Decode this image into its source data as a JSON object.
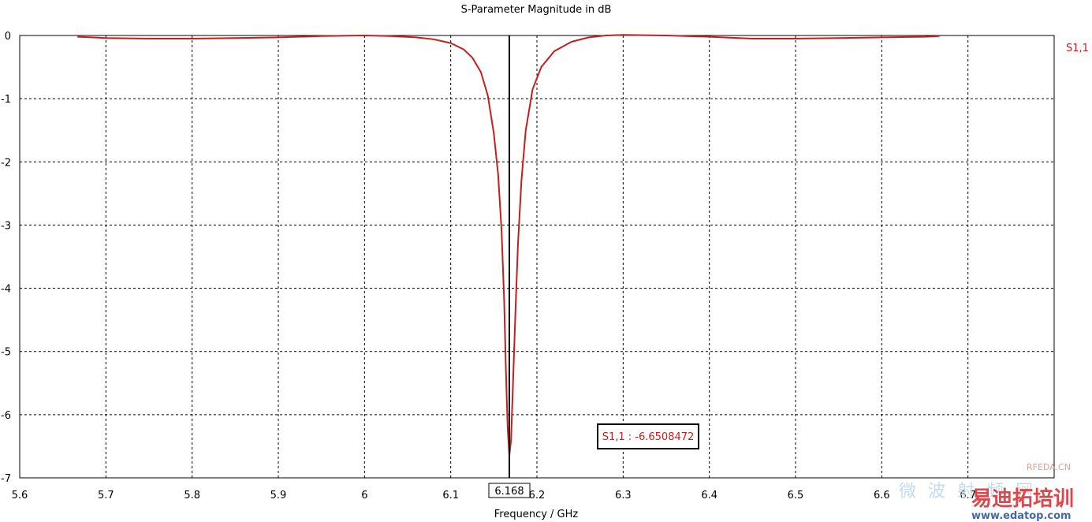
{
  "chart_data": {
    "type": "line",
    "title": "S-Parameter Magnitude in dB",
    "xlabel": "Frequency / GHz",
    "ylabel": "",
    "xlim": [
      5.6,
      6.8
    ],
    "ylim": [
      -7,
      0
    ],
    "xticks": [
      "5.6",
      "5.7",
      "5.8",
      "5.9",
      "6",
      "6.1",
      "6.2",
      "6.3",
      "6.4",
      "6.5",
      "6.6",
      "6.7"
    ],
    "yticks": [
      "0",
      "-1",
      "-2",
      "-3",
      "-4",
      "-5",
      "-6",
      "-7"
    ],
    "grid": true,
    "legend": {
      "position": "right",
      "entries": [
        "S1,1"
      ]
    },
    "series": [
      {
        "name": "S1,1",
        "color": "#c41e1e",
        "points": [
          [
            5.667,
            -0.02
          ],
          [
            5.7,
            -0.04
          ],
          [
            5.75,
            -0.05
          ],
          [
            5.8,
            -0.05
          ],
          [
            5.85,
            -0.04
          ],
          [
            5.9,
            -0.03
          ],
          [
            5.95,
            -0.01
          ],
          [
            6.0,
            0.0
          ],
          [
            6.03,
            -0.01
          ],
          [
            6.06,
            -0.03
          ],
          [
            6.08,
            -0.06
          ],
          [
            6.1,
            -0.12
          ],
          [
            6.115,
            -0.22
          ],
          [
            6.125,
            -0.35
          ],
          [
            6.135,
            -0.58
          ],
          [
            6.143,
            -0.95
          ],
          [
            6.15,
            -1.55
          ],
          [
            6.155,
            -2.2
          ],
          [
            6.159,
            -3.1
          ],
          [
            6.162,
            -4.2
          ],
          [
            6.164,
            -5.3
          ],
          [
            6.166,
            -6.2
          ],
          [
            6.168,
            -6.65
          ],
          [
            6.17,
            -6.4
          ],
          [
            6.172,
            -5.6
          ],
          [
            6.175,
            -4.4
          ],
          [
            6.178,
            -3.3
          ],
          [
            6.182,
            -2.3
          ],
          [
            6.187,
            -1.5
          ],
          [
            6.195,
            -0.85
          ],
          [
            6.205,
            -0.5
          ],
          [
            6.22,
            -0.25
          ],
          [
            6.24,
            -0.1
          ],
          [
            6.26,
            -0.03
          ],
          [
            6.28,
            0.0
          ],
          [
            6.3,
            0.01
          ],
          [
            6.35,
            0.0
          ],
          [
            6.4,
            -0.02
          ],
          [
            6.45,
            -0.05
          ],
          [
            6.5,
            -0.05
          ],
          [
            6.55,
            -0.04
          ],
          [
            6.6,
            -0.03
          ],
          [
            6.65,
            -0.02
          ],
          [
            6.667,
            -0.01
          ]
        ]
      }
    ],
    "marker": {
      "x": 6.168,
      "x_label": "6.168",
      "annotation": "S1,1 : -6.6508472",
      "color": "#000000",
      "annotation_color": "#c41e1e"
    }
  },
  "watermark": {
    "brand_cn": "易迪拓培训",
    "site": "www.edatop.com",
    "rfeda": "RFEDA.CN",
    "weibo": "微 波 射 频 网"
  }
}
